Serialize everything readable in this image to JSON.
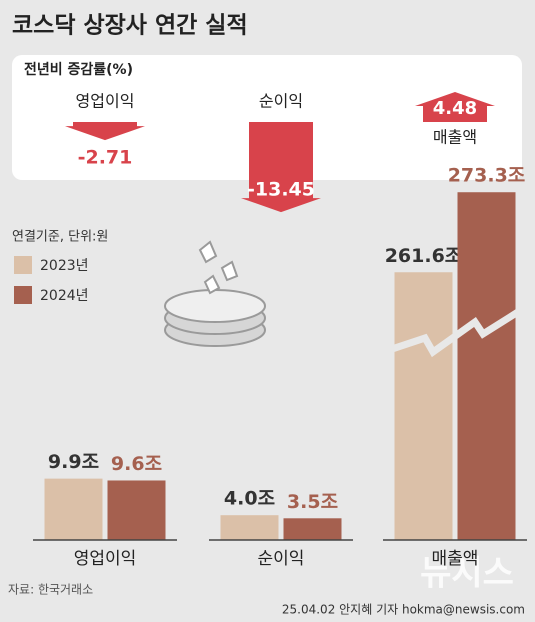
{
  "title": "코스닥 상장사 연간 실적",
  "chart_data": [
    {
      "type": "arrow",
      "title": "전년비 증감률(%)",
      "categories": [
        "영업이익",
        "순이익",
        "매출액"
      ],
      "values": [
        -2.71,
        -13.45,
        4.48
      ],
      "color": "#d8434b"
    },
    {
      "type": "bar",
      "note": "연결기준, 단위:원",
      "categories": [
        "영업이익",
        "순이익",
        "매출액"
      ],
      "series": [
        {
          "name": "2023년",
          "color": "#dbc0a8",
          "values": [
            9.9,
            4.0,
            261.6
          ],
          "value_labels": [
            "9.9조",
            "4.0조",
            "261.6조"
          ]
        },
        {
          "name": "2024년",
          "color": "#a5604f",
          "values": [
            9.6,
            3.5,
            273.3
          ],
          "value_labels": [
            "9.6조",
            "3.5조",
            "273.3조"
          ]
        }
      ]
    }
  ],
  "source": "자료: 한국거래소",
  "credit": "25.04.02 안지혜 기자 hokma@newsis.com",
  "watermark": "뉴시스"
}
